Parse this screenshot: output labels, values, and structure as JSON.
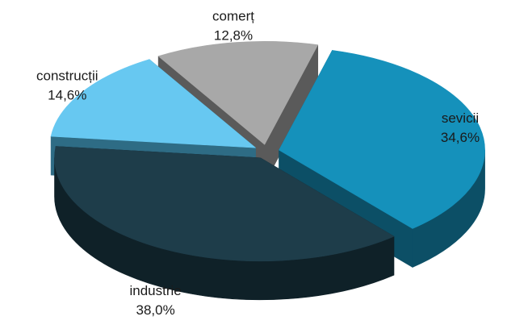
{
  "chart_data": {
    "type": "pie",
    "title": "",
    "categories": [
      "sevicii",
      "industrie",
      "construcții",
      "comerț"
    ],
    "values": [
      34.6,
      38.0,
      14.6,
      12.8
    ],
    "value_labels": [
      "34,6%",
      "38,0%",
      "14,6%",
      "12,8%"
    ],
    "unit": "%",
    "style": "3d-exploded",
    "legend": "none",
    "colors": [
      "#1591bb",
      "#1e3d4a",
      "#67c8f1",
      "#a8a8a8"
    ],
    "side_colors": [
      "#0c4f66",
      "#0f2128",
      "#2e6c85",
      "#5a5a5a"
    ]
  }
}
